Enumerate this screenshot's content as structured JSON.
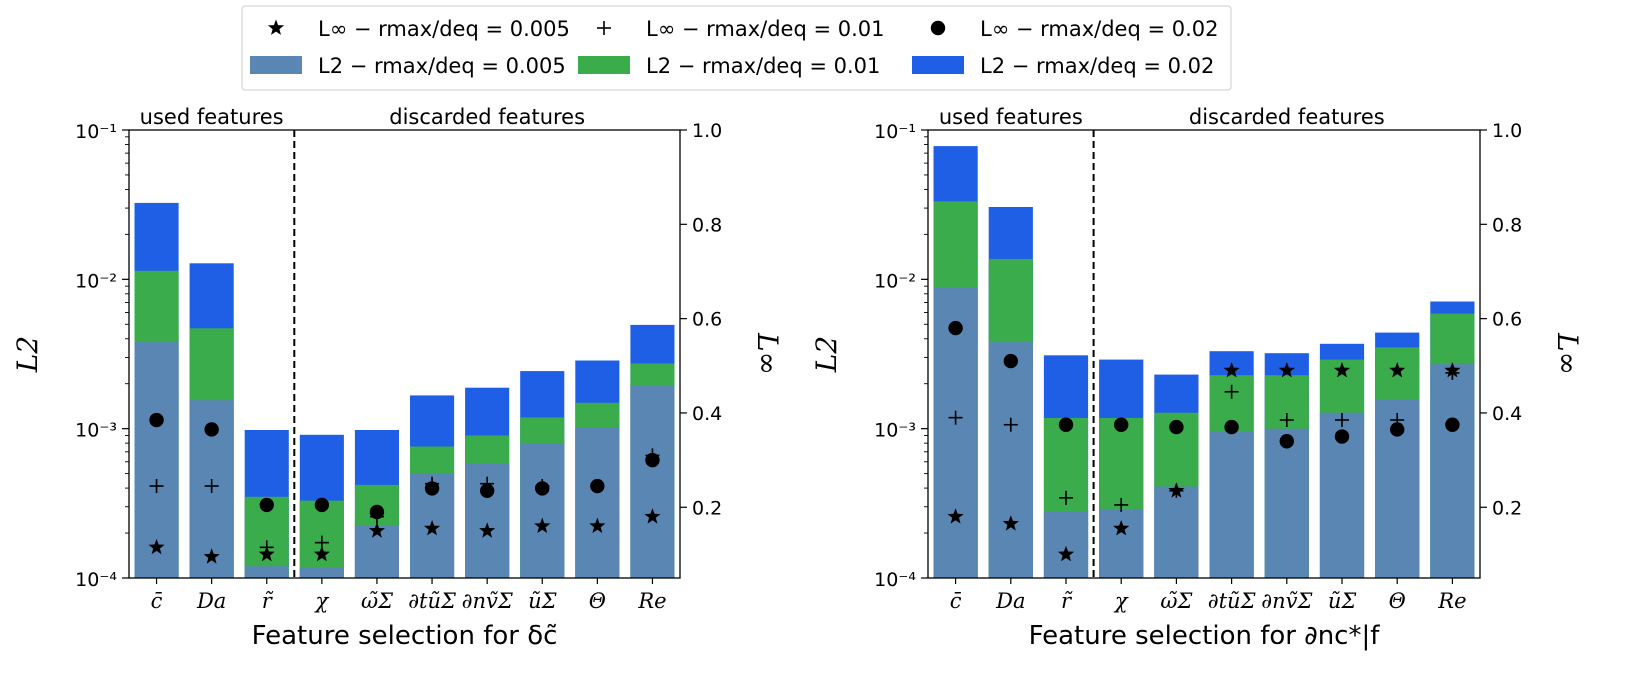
{
  "legend": {
    "location": "upper-center",
    "ncols": 3,
    "entries": [
      {
        "name": "L∞ − rmax/deq = 0.005",
        "marker": "star"
      },
      {
        "name": "L∞ − rmax/deq = 0.01",
        "marker": "plus"
      },
      {
        "name": "L∞ − rmax/deq = 0.02",
        "marker": "circle"
      },
      {
        "name": "L2 − rmax/deq = 0.005",
        "marker": "bar",
        "color": "#5a86b3"
      },
      {
        "name": "L2 − rmax/deq = 0.01",
        "marker": "bar",
        "color": "#3bac4b"
      },
      {
        "name": "L2 − rmax/deq = 0.02",
        "marker": "bar",
        "color": "#1e5fe6"
      }
    ]
  },
  "colors": {
    "bar_0005": "#5a86b3",
    "bar_001": "#3bac4b",
    "bar_002": "#1e5fe6"
  },
  "chart_data": [
    {
      "type": "bar",
      "xlabel": "Feature selection for δc̃",
      "ylabel": "L2",
      "y2label": "L∞",
      "yscale": "log",
      "ylim": [
        0.0001,
        0.1
      ],
      "y2lim": [
        0.05,
        1.0
      ],
      "yticks": [
        "10⁻⁴",
        "10⁻³",
        "10⁻²",
        "10⁻¹"
      ],
      "y2ticks": [
        "0.2",
        "0.4",
        "0.6",
        "0.8",
        "1.0"
      ],
      "categories": [
        "c̄",
        "Da",
        "r̃",
        "χ",
        "ω̃Σ",
        "∂tũΣ",
        "∂nṽΣ",
        "ũΣ",
        "Θ",
        "Re"
      ],
      "regions": [
        {
          "label": "used features",
          "n": 3
        },
        {
          "label": "discarded features",
          "n": 7
        }
      ],
      "l2": {
        "0.005": [
          0.0038,
          0.00155,
          0.00012,
          0.000118,
          0.000225,
          0.0005,
          0.00058,
          0.0008,
          0.00102,
          0.00195
        ],
        "0.01": [
          0.0114,
          0.0047,
          0.00035,
          0.00033,
          0.00042,
          0.00076,
          0.0009,
          0.00119,
          0.00149,
          0.00273
        ],
        "0.02": [
          0.0325,
          0.0128,
          0.00098,
          0.00091,
          0.00098,
          0.00167,
          0.00188,
          0.00243,
          0.00286,
          0.00495
        ]
      },
      "linf": {
        "0.005": [
          0.115,
          0.095,
          0.1,
          0.1,
          0.15,
          0.155,
          0.15,
          0.16,
          0.16,
          0.18
        ],
        "0.01": [
          0.245,
          0.245,
          0.115,
          0.125,
          0.18,
          0.25,
          0.25,
          0.245,
          0.245,
          0.31
        ],
        "0.02": [
          0.385,
          0.365,
          0.205,
          0.205,
          0.19,
          0.24,
          0.235,
          0.24,
          0.245,
          0.3
        ]
      }
    },
    {
      "type": "bar",
      "xlabel": "Feature selection for ∂nc*|f",
      "ylabel": "L2",
      "y2label": "L∞",
      "yscale": "log",
      "ylim": [
        0.0001,
        0.1
      ],
      "y2lim": [
        0.05,
        1.0
      ],
      "yticks": [
        "10⁻⁴",
        "10⁻³",
        "10⁻²",
        "10⁻¹"
      ],
      "y2ticks": [
        "0.2",
        "0.4",
        "0.6",
        "0.8",
        "1.0"
      ],
      "categories": [
        "c̄",
        "Da",
        "r̃",
        "χ",
        "ω̃Σ",
        "∂tũΣ",
        "∂nṽΣ",
        "ũΣ",
        "Θ",
        "Re"
      ],
      "regions": [
        {
          "label": "used features",
          "n": 3
        },
        {
          "label": "discarded features",
          "n": 7
        }
      ],
      "l2": {
        "0.005": [
          0.0088,
          0.0038,
          0.00028,
          0.00029,
          0.00041,
          0.00096,
          0.001,
          0.00128,
          0.00158,
          0.0027
        ],
        "0.01": [
          0.0333,
          0.0137,
          0.00118,
          0.00118,
          0.00128,
          0.00228,
          0.00228,
          0.0029,
          0.0035,
          0.0059
        ],
        "0.02": [
          0.078,
          0.0305,
          0.0031,
          0.0029,
          0.0023,
          0.0033,
          0.0032,
          0.0037,
          0.0044,
          0.0071
        ]
      },
      "linf": {
        "0.005": [
          0.18,
          0.165,
          0.1,
          0.155,
          0.235,
          0.49,
          0.49,
          0.49,
          0.49,
          0.49
        ],
        "0.01": [
          0.39,
          0.375,
          0.22,
          0.205,
          0.235,
          0.445,
          0.385,
          0.385,
          0.385,
          0.485
        ],
        "0.02": [
          0.58,
          0.51,
          0.375,
          0.375,
          0.37,
          0.37,
          0.34,
          0.35,
          0.365,
          0.375
        ]
      }
    }
  ]
}
